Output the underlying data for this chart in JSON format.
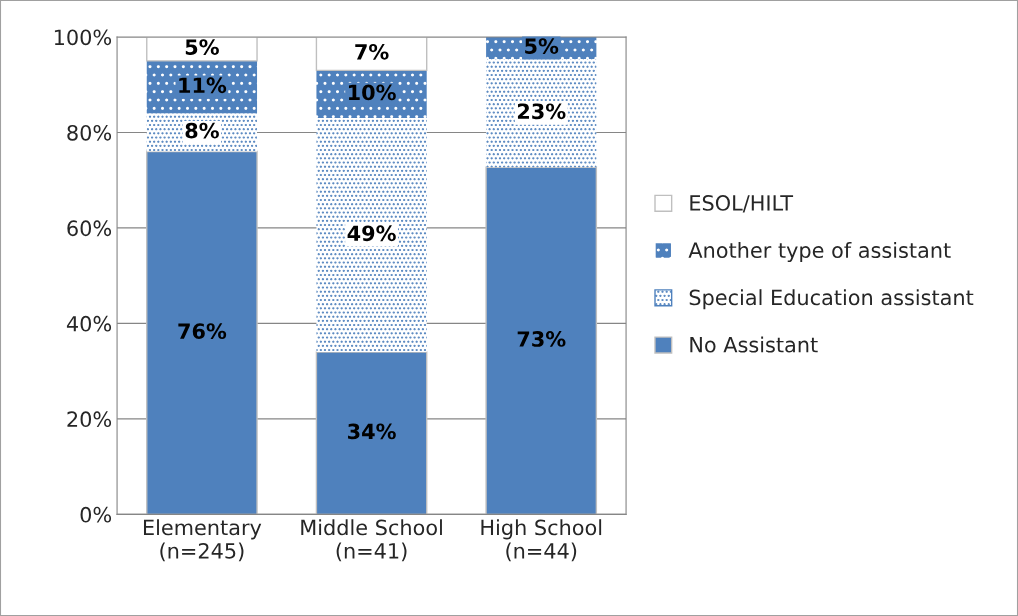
{
  "chart_data": {
    "type": "bar",
    "stacked": true,
    "categories": [
      "Elementary\n(n=245)",
      "Middle School\n(n=41)",
      "High School\n(n=44)"
    ],
    "series": [
      {
        "name": "No Assistant",
        "color": "#4f81bd",
        "values": [
          76,
          34,
          72.7
        ],
        "value_labels": [
          "76%",
          "34%",
          "73%"
        ]
      },
      {
        "name": "Special Education assistant",
        "color": "#ffffff",
        "values": [
          8,
          49,
          22.7
        ],
        "value_labels": [
          "8%",
          "49%",
          "23%"
        ]
      },
      {
        "name": "Another type of assistant",
        "color": "#4f81bd",
        "values": [
          11,
          10,
          4.6
        ],
        "value_labels": [
          "11%",
          "10%",
          "5%"
        ]
      },
      {
        "name": "ESOL/HILT",
        "color": "#ffffff",
        "values": [
          5,
          7,
          null
        ],
        "value_labels": [
          "5%",
          "7%",
          null
        ]
      }
    ],
    "ylim": [
      0,
      100
    ],
    "yticks": [
      {
        "value": 0,
        "label": "0%"
      },
      {
        "value": 20,
        "label": "20%"
      },
      {
        "value": 40,
        "label": "40%"
      },
      {
        "value": 60,
        "label": "60%"
      },
      {
        "value": 80,
        "label": "80%"
      },
      {
        "value": 100,
        "label": "100%"
      }
    ],
    "grid": "y",
    "legend": "right"
  }
}
